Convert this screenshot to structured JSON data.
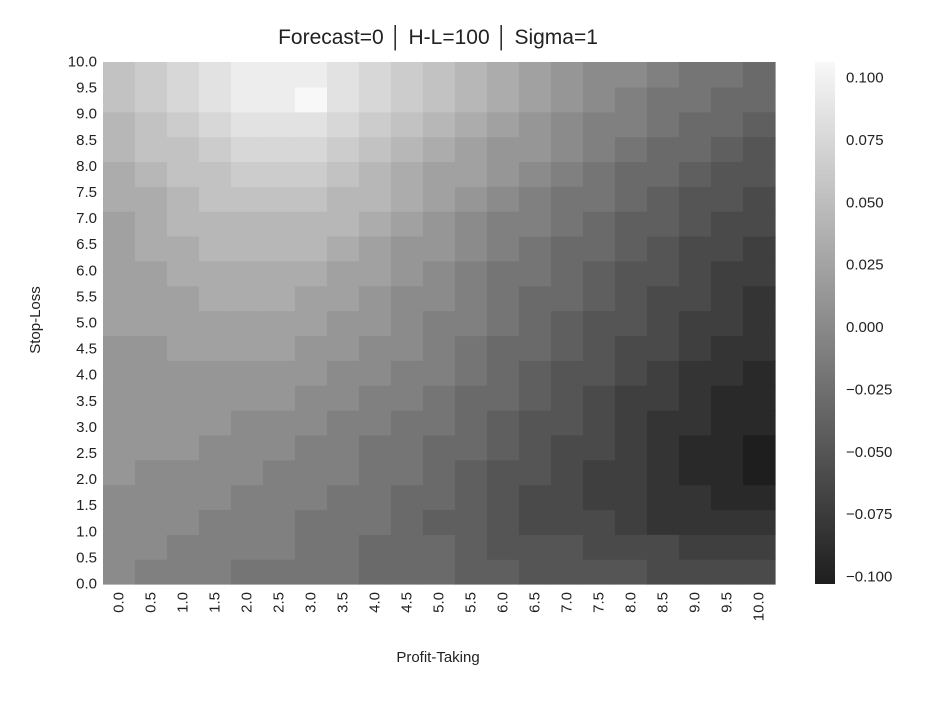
{
  "chart_data": {
    "type": "heatmap",
    "title": "Forecast=0 │ H-L=100 │ Sigma=1",
    "xlabel": "Profit-Taking",
    "ylabel": "Stop-Loss",
    "x_ticks": [
      "0.0",
      "0.5",
      "1.0",
      "1.5",
      "2.0",
      "2.5",
      "3.0",
      "3.5",
      "4.0",
      "4.5",
      "5.0",
      "5.5",
      "6.0",
      "6.5",
      "7.0",
      "7.5",
      "8.0",
      "8.5",
      "9.0",
      "9.5",
      "10.0"
    ],
    "y_ticks": [
      "0.0",
      "0.5",
      "1.0",
      "1.5",
      "2.0",
      "2.5",
      "3.0",
      "3.5",
      "4.0",
      "4.5",
      "5.0",
      "5.5",
      "6.0",
      "6.5",
      "7.0",
      "7.5",
      "8.0",
      "8.5",
      "9.0",
      "9.5",
      "10.0"
    ],
    "xlim": [
      0,
      10
    ],
    "ylim": [
      0,
      10
    ],
    "colorbar": {
      "range": [
        -0.1,
        0.1
      ],
      "ticks": [
        "0.100",
        "0.075",
        "0.050",
        "0.025",
        "0.000",
        "−0.025",
        "−0.050",
        "−0.075",
        "−0.100"
      ],
      "colormap": "gray",
      "low_color": "#1e1e1e",
      "high_color": "#f8f8f8"
    },
    "grid": false,
    "values_by_row_from_stop_loss_0": [
      [
        0.0,
        -0.01,
        -0.01,
        -0.01,
        -0.02,
        -0.02,
        -0.02,
        -0.02,
        -0.03,
        -0.03,
        -0.03,
        -0.04,
        -0.04,
        -0.05,
        -0.05,
        -0.05,
        -0.05,
        -0.06,
        -0.06,
        -0.06,
        -0.06
      ],
      [
        0.0,
        0.0,
        -0.01,
        -0.01,
        -0.01,
        -0.01,
        -0.02,
        -0.02,
        -0.03,
        -0.03,
        -0.03,
        -0.04,
        -0.05,
        -0.05,
        -0.05,
        -0.06,
        -0.06,
        -0.06,
        -0.07,
        -0.07,
        -0.07
      ],
      [
        0.0,
        0.0,
        0.0,
        -0.01,
        -0.01,
        -0.01,
        -0.02,
        -0.02,
        -0.02,
        -0.03,
        -0.04,
        -0.04,
        -0.05,
        -0.06,
        -0.06,
        -0.06,
        -0.07,
        -0.08,
        -0.08,
        -0.08,
        -0.08
      ],
      [
        0.0,
        0.0,
        0.0,
        0.0,
        -0.01,
        -0.01,
        -0.01,
        -0.02,
        -0.02,
        -0.03,
        -0.03,
        -0.04,
        -0.05,
        -0.06,
        -0.06,
        -0.07,
        -0.07,
        -0.08,
        -0.08,
        -0.09,
        -0.09
      ],
      [
        0.01,
        0.0,
        0.0,
        0.0,
        0.0,
        -0.01,
        -0.01,
        -0.01,
        -0.02,
        -0.02,
        -0.03,
        -0.04,
        -0.05,
        -0.05,
        -0.06,
        -0.07,
        -0.07,
        -0.08,
        -0.09,
        -0.09,
        -0.1
      ],
      [
        0.01,
        0.01,
        0.01,
        0.0,
        0.0,
        0.0,
        -0.01,
        -0.01,
        -0.02,
        -0.02,
        -0.03,
        -0.03,
        -0.04,
        -0.05,
        -0.06,
        -0.06,
        -0.07,
        -0.08,
        -0.09,
        -0.09,
        -0.1
      ],
      [
        0.01,
        0.01,
        0.01,
        0.01,
        0.0,
        0.0,
        0.0,
        -0.01,
        -0.01,
        -0.02,
        -0.02,
        -0.03,
        -0.04,
        -0.05,
        -0.05,
        -0.06,
        -0.07,
        -0.08,
        -0.08,
        -0.09,
        -0.09
      ],
      [
        0.01,
        0.01,
        0.01,
        0.01,
        0.01,
        0.01,
        0.0,
        0.0,
        -0.01,
        -0.01,
        -0.02,
        -0.03,
        -0.03,
        -0.04,
        -0.05,
        -0.06,
        -0.07,
        -0.07,
        -0.08,
        -0.09,
        -0.09
      ],
      [
        0.01,
        0.01,
        0.01,
        0.01,
        0.01,
        0.01,
        0.01,
        0.0,
        0.0,
        -0.01,
        -0.01,
        -0.02,
        -0.03,
        -0.04,
        -0.05,
        -0.05,
        -0.06,
        -0.07,
        -0.08,
        -0.08,
        -0.09
      ],
      [
        0.01,
        0.01,
        0.02,
        0.02,
        0.02,
        0.02,
        0.01,
        0.01,
        0.0,
        0.0,
        -0.01,
        -0.02,
        -0.03,
        -0.03,
        -0.04,
        -0.05,
        -0.06,
        -0.06,
        -0.07,
        -0.08,
        -0.08
      ],
      [
        0.02,
        0.02,
        0.02,
        0.02,
        0.02,
        0.02,
        0.02,
        0.01,
        0.01,
        0.0,
        -0.01,
        -0.01,
        -0.02,
        -0.03,
        -0.04,
        -0.05,
        -0.05,
        -0.06,
        -0.07,
        -0.07,
        -0.08
      ],
      [
        0.02,
        0.02,
        0.02,
        0.03,
        0.03,
        0.03,
        0.02,
        0.02,
        0.01,
        0.0,
        0.0,
        -0.01,
        -0.02,
        -0.03,
        -0.03,
        -0.04,
        -0.05,
        -0.06,
        -0.06,
        -0.07,
        -0.08
      ],
      [
        0.02,
        0.02,
        0.03,
        0.03,
        0.03,
        0.03,
        0.03,
        0.02,
        0.02,
        0.01,
        0.0,
        -0.01,
        -0.02,
        -0.02,
        -0.03,
        -0.04,
        -0.05,
        -0.05,
        -0.06,
        -0.07,
        -0.07
      ],
      [
        0.02,
        0.03,
        0.03,
        0.04,
        0.04,
        0.04,
        0.04,
        0.03,
        0.02,
        0.01,
        0.01,
        0.0,
        -0.01,
        -0.02,
        -0.03,
        -0.03,
        -0.04,
        -0.05,
        -0.06,
        -0.06,
        -0.07
      ],
      [
        0.02,
        0.03,
        0.04,
        0.04,
        0.04,
        0.04,
        0.04,
        0.04,
        0.03,
        0.02,
        0.01,
        0.0,
        -0.01,
        -0.01,
        -0.02,
        -0.03,
        -0.04,
        -0.04,
        -0.05,
        -0.06,
        -0.06
      ],
      [
        0.03,
        0.03,
        0.04,
        0.05,
        0.05,
        0.05,
        0.05,
        0.04,
        0.04,
        0.03,
        0.02,
        0.01,
        0.0,
        -0.01,
        -0.02,
        -0.02,
        -0.03,
        -0.04,
        -0.05,
        -0.05,
        -0.06
      ],
      [
        0.03,
        0.04,
        0.05,
        0.05,
        0.06,
        0.06,
        0.06,
        0.05,
        0.04,
        0.03,
        0.02,
        0.02,
        0.01,
        0.0,
        -0.01,
        -0.02,
        -0.03,
        -0.03,
        -0.04,
        -0.05,
        -0.05
      ],
      [
        0.04,
        0.05,
        0.05,
        0.06,
        0.07,
        0.07,
        0.07,
        0.06,
        0.05,
        0.04,
        0.03,
        0.02,
        0.01,
        0.01,
        0.0,
        -0.01,
        -0.02,
        -0.03,
        -0.03,
        -0.04,
        -0.05
      ],
      [
        0.04,
        0.05,
        0.06,
        0.07,
        0.08,
        0.08,
        0.08,
        0.07,
        0.06,
        0.05,
        0.04,
        0.03,
        0.02,
        0.01,
        0.0,
        -0.01,
        -0.01,
        -0.02,
        -0.03,
        -0.03,
        -0.04
      ],
      [
        0.05,
        0.06,
        0.07,
        0.08,
        0.09,
        0.09,
        0.1,
        0.08,
        0.07,
        0.06,
        0.05,
        0.04,
        0.03,
        0.02,
        0.01,
        0.0,
        -0.01,
        -0.02,
        -0.02,
        -0.03,
        -0.03
      ],
      [
        0.05,
        0.06,
        0.07,
        0.08,
        0.09,
        0.09,
        0.09,
        0.08,
        0.07,
        0.06,
        0.05,
        0.04,
        0.03,
        0.02,
        0.01,
        0.0,
        0.0,
        -0.01,
        -0.02,
        -0.02,
        -0.03
      ]
    ]
  }
}
